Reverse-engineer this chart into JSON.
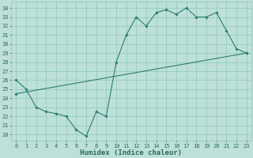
{
  "title": "",
  "xlabel": "Humidex (Indice chaleur)",
  "ylabel": "",
  "xlim": [
    -0.5,
    23.5
  ],
  "ylim": [
    19.3,
    34.7
  ],
  "xticks": [
    0,
    1,
    2,
    3,
    4,
    5,
    6,
    7,
    8,
    9,
    10,
    11,
    12,
    13,
    14,
    15,
    16,
    17,
    18,
    19,
    20,
    21,
    22,
    23
  ],
  "yticks": [
    20,
    21,
    22,
    23,
    24,
    25,
    26,
    27,
    28,
    29,
    30,
    31,
    32,
    33,
    34
  ],
  "line1_x": [
    0,
    1,
    2,
    3,
    4,
    5,
    6,
    7,
    8,
    9,
    10,
    11,
    12,
    13,
    14,
    15,
    16,
    17,
    18,
    19,
    20,
    21,
    22,
    23
  ],
  "line1_y": [
    26.0,
    25.0,
    23.0,
    22.5,
    22.3,
    22.0,
    20.5,
    19.8,
    22.5,
    22.0,
    28.0,
    31.0,
    33.0,
    32.0,
    33.5,
    33.8,
    33.3,
    34.0,
    33.0,
    33.0,
    33.5,
    31.5,
    29.5,
    29.0
  ],
  "line2_x": [
    0,
    23
  ],
  "line2_y": [
    24.5,
    29.0
  ],
  "line_color": "#2e7d72",
  "bg_color": "#bde0d8",
  "grid_color": "#8ec8bc",
  "font_color": "#2a6b5e",
  "tick_fontsize": 5.0,
  "xlabel_fontsize": 6.5
}
